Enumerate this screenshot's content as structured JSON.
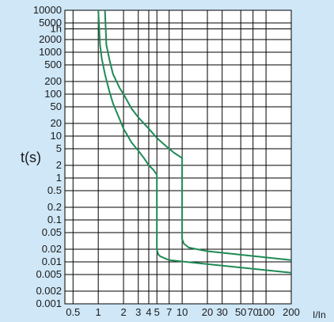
{
  "chart_data": {
    "type": "line",
    "title": "",
    "xlabel": "I/In",
    "ylabel": "t(s)",
    "x_scale": "log",
    "y_scale": "log",
    "xlim": [
      0.4,
      200
    ],
    "ylim": [
      0.001,
      10000
    ],
    "grid": true,
    "colors": {
      "background": "#cfe7f7",
      "plot": "#ffffff",
      "grid": "#000000",
      "curve": "#1e8a55"
    },
    "x_ticks": [
      {
        "value": 0.5,
        "label": "0.5"
      },
      {
        "value": 1,
        "label": "1"
      },
      {
        "value": 2,
        "label": "2"
      },
      {
        "value": 3,
        "label": "3"
      },
      {
        "value": 4,
        "label": "4"
      },
      {
        "value": 5,
        "label": "5"
      },
      {
        "value": 7,
        "label": "7"
      },
      {
        "value": 10,
        "label": "10"
      },
      {
        "value": 20,
        "label": "20"
      },
      {
        "value": 30,
        "label": "30"
      },
      {
        "value": 50,
        "label": "50"
      },
      {
        "value": 70,
        "label": "70"
      },
      {
        "value": 100,
        "label": "100"
      },
      {
        "value": 200,
        "label": "200"
      }
    ],
    "y_ticks": [
      {
        "value": 0.001,
        "label": "0.001"
      },
      {
        "value": 0.002,
        "label": "0.002"
      },
      {
        "value": 0.005,
        "label": "0.005"
      },
      {
        "value": 0.01,
        "label": "0.01"
      },
      {
        "value": 0.02,
        "label": "0.02"
      },
      {
        "value": 0.05,
        "label": "0.05"
      },
      {
        "value": 0.1,
        "label": "0.1"
      },
      {
        "value": 0.2,
        "label": "0.2"
      },
      {
        "value": 0.5,
        "label": "0.5"
      },
      {
        "value": 1,
        "label": "1"
      },
      {
        "value": 2,
        "label": "2"
      },
      {
        "value": 5,
        "label": "5"
      },
      {
        "value": 10,
        "label": "10"
      },
      {
        "value": 20,
        "label": "20"
      },
      {
        "value": 50,
        "label": "50"
      },
      {
        "value": 100,
        "label": "100"
      },
      {
        "value": 200,
        "label": "200"
      },
      {
        "value": 500,
        "label": "500"
      },
      {
        "value": 1000,
        "label": "1000"
      },
      {
        "value": 2000,
        "label": "2000"
      },
      {
        "value": 3600,
        "label": "1h"
      },
      {
        "value": 5000,
        "label": "5000"
      },
      {
        "value": 10000,
        "label": "10000"
      }
    ],
    "series": [
      {
        "x": [
          1.0,
          1.05,
          1.1,
          1.2,
          1.35,
          1.5,
          1.8,
          2.0,
          2.5,
          3.0,
          3.5,
          4.0,
          4.5,
          5.0,
          5.0,
          5.0,
          5.2,
          5.5,
          7.0,
          200.0
        ],
        "y": [
          10000,
          1500,
          700,
          300,
          120,
          60,
          25,
          15,
          7,
          4.5,
          3,
          2,
          1.6,
          1.2,
          0.5,
          0.02,
          0.015,
          0.0135,
          0.011,
          0.0055
        ]
      },
      {
        "x": [
          1.2,
          1.25,
          1.35,
          1.5,
          1.8,
          2.0,
          2.5,
          3.0,
          4.0,
          5.0,
          6.0,
          7.0,
          8.0,
          10.0,
          10.0,
          10.0,
          10.5,
          12.0,
          15.0,
          20.0,
          200.0
        ],
        "y": [
          10000,
          1500,
          700,
          300,
          140,
          100,
          45,
          28,
          15,
          9,
          6.5,
          5,
          4,
          3,
          0.1,
          0.035,
          0.027,
          0.022,
          0.02,
          0.018,
          0.011
        ]
      }
    ]
  }
}
